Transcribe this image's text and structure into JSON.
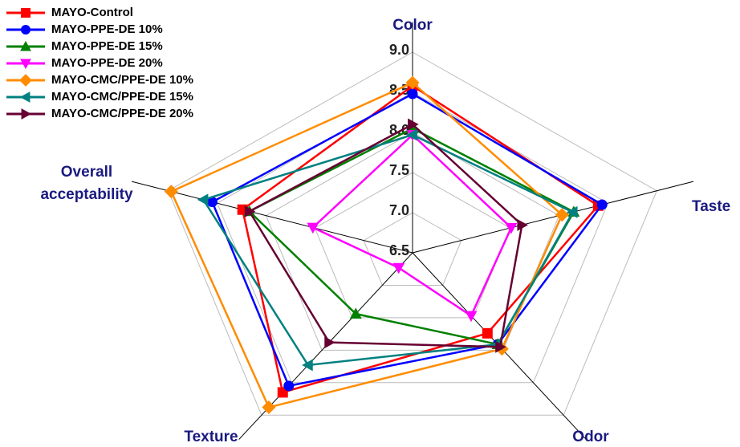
{
  "chart_data": {
    "type": "radar",
    "categories": [
      "Color",
      "Taste",
      "Odor",
      "Texture",
      "Overall acceptability"
    ],
    "rlim": [
      6.5,
      9.0
    ],
    "rticks": [
      {
        "value": 6.5,
        "label": "6.5"
      },
      {
        "value": 7.0,
        "label": "7.0"
      },
      {
        "value": 7.5,
        "label": "7.5"
      },
      {
        "value": 8.0,
        "label": "8.0"
      },
      {
        "value": 8.5,
        "label": "8.5"
      },
      {
        "value": 9.0,
        "label": "9.0"
      }
    ],
    "grid": true,
    "legend": "upper left",
    "series": [
      {
        "name": "MAYO-Control",
        "color": "#ff0000",
        "marker": "square",
        "values": [
          8.58,
          8.4,
          7.74,
          8.65,
          8.24
        ]
      },
      {
        "name": "MAYO-PPE-DE 10%",
        "color": "#0000ff",
        "marker": "circle",
        "values": [
          8.48,
          8.44,
          7.91,
          8.55,
          8.55
        ]
      },
      {
        "name": "MAYO-PPE-DE 15%",
        "color": "#008000",
        "marker": "triangle-up",
        "values": [
          8.05,
          8.15,
          7.91,
          7.44,
          8.17
        ]
      },
      {
        "name": "MAYO-PPE-DE 20%",
        "color": "#ff00ff",
        "marker": "triangle-down",
        "values": [
          7.97,
          7.51,
          7.47,
          6.73,
          7.52
        ]
      },
      {
        "name": "MAYO-CMC/PPE-DE 10%",
        "color": "#ff8c00",
        "marker": "diamond",
        "values": [
          8.62,
          8.03,
          7.98,
          8.88,
          8.97
        ]
      },
      {
        "name": "MAYO-CMC/PPE-DE  15%",
        "color": "#008080",
        "marker": "triangle-left",
        "values": [
          7.97,
          8.14,
          7.91,
          8.23,
          8.64
        ]
      },
      {
        "name": "MAYO-CMC/PPE-DE  20%",
        "color": "#660033",
        "marker": "triangle-right",
        "values": [
          8.1,
          7.62,
          7.95,
          7.88,
          8.17
        ]
      }
    ]
  }
}
